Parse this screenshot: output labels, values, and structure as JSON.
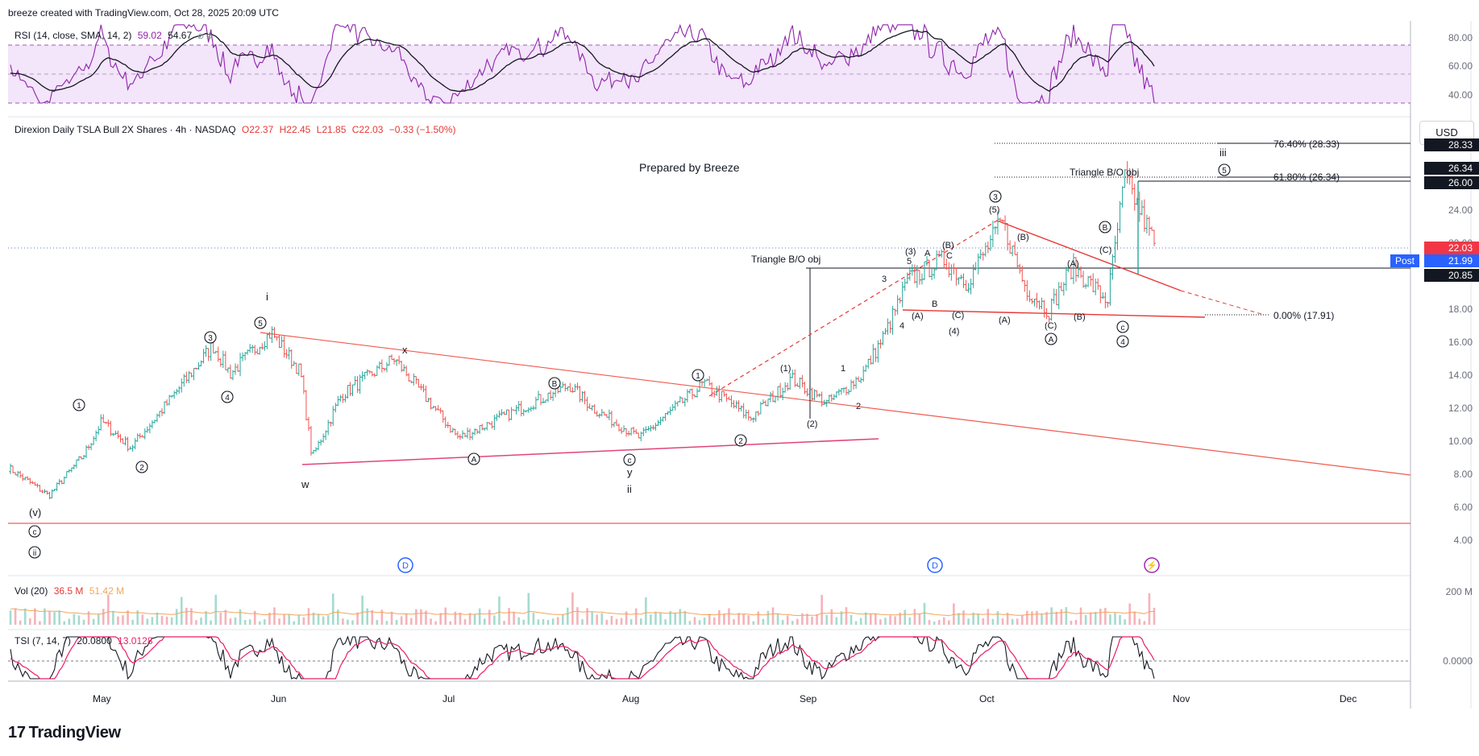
{
  "header": {
    "credit": "breeze created with TradingView.com, Oct 28, 2025 20:09 UTC"
  },
  "rsi": {
    "label": "RSI (14, close, SMA, 14, 2)",
    "value": "59.02",
    "ma": "54.67",
    "icons": "⌀ ⌀",
    "ticks": [
      "80.00",
      "60.00",
      "40.00"
    ]
  },
  "main": {
    "symbol": "Direxion Daily TSLA Bull 2X Shares · 4h · NASDAQ",
    "open": "O22.37",
    "high": "H22.45",
    "low": "L21.85",
    "close": "C22.03",
    "change": "−0.33 (−1.50%)",
    "currency": "USD",
    "watermark": "Prepared by Breeze",
    "ticks": [
      "24.00",
      "22.00",
      "20.00",
      "18.00",
      "16.00",
      "14.00",
      "12.00",
      "10.00",
      "8.00",
      "6.00",
      "4.00"
    ],
    "tags": {
      "t1": "28.33",
      "t2": "26.34",
      "t3": "26.00",
      "last": "22.03",
      "post_label": "Post",
      "post": "21.99",
      "level": "20.85"
    },
    "fib": {
      "f764": "76.40% (28.33)",
      "f618": "61.80% (26.34)",
      "f0": "0.00% (17.91)"
    },
    "triangle_left": "Triangle B/O obj",
    "triangle_right": "Triangle B/O obj",
    "dividend_badge": "D",
    "earnings_badge": "⚡"
  },
  "volume": {
    "label": "Vol (20)",
    "v1": "36.5 M",
    "v2": "51.42 M",
    "tick": "200 M"
  },
  "tsi": {
    "label": "TSI (7, 14, 7)",
    "v1": "20.0800",
    "v2": "13.0128",
    "tick": "0.0000"
  },
  "xaxis": [
    "May",
    "Jun",
    "Jul",
    "Aug",
    "Sep",
    "Oct",
    "Nov",
    "Dec"
  ],
  "footer": {
    "brand": "TradingView",
    "logo": "17"
  },
  "wave_labels": {
    "w1": "i",
    "w2": "ii",
    "w3": "iii",
    "w": "w",
    "x": "x",
    "y": "y",
    "v": "(v)",
    "c": "c",
    "n1": "1",
    "n2": "2",
    "n3": "3",
    "n4": "4",
    "n5": "5",
    "p1": "(1)",
    "p2": "(2)",
    "p3": "(3)",
    "p4": "(4)",
    "p5": "(5)",
    "pA": "(A)",
    "pB": "(B)",
    "pC": "(C)",
    "A": "A",
    "B": "B",
    "C": "C"
  },
  "chart_data": {
    "type": "candlestick",
    "title": "Direxion Daily TSLA Bull 2X Shares · 4h · NASDAQ",
    "x_range": [
      "2025-04-15",
      "2025-12-20"
    ],
    "ylim": [
      4,
      28.33
    ],
    "last_close": 22.03,
    "levels": [
      {
        "label": "Triangle B/O obj",
        "value": 20.85
      },
      {
        "label": "Triangle B/O obj",
        "value": 26.0
      },
      {
        "label": "76.40% (28.33)",
        "value": 28.33
      },
      {
        "label": "61.80% (26.34)",
        "value": 26.34
      },
      {
        "label": "0.00% (17.91)",
        "value": 17.91
      }
    ],
    "price_path": [
      {
        "date": "2025-04-15",
        "price": 8.4
      },
      {
        "date": "2025-04-22",
        "price": 6.7
      },
      {
        "date": "2025-04-28",
        "price": 9.2
      },
      {
        "date": "2025-05-01",
        "price": 11.2
      },
      {
        "date": "2025-05-06",
        "price": 9.6
      },
      {
        "date": "2025-05-12",
        "price": 12.2
      },
      {
        "date": "2025-05-20",
        "price": 15.8
      },
      {
        "date": "2025-05-23",
        "price": 14.1
      },
      {
        "date": "2025-05-30",
        "price": 16.6
      },
      {
        "date": "2025-06-04",
        "price": 14.2
      },
      {
        "date": "2025-06-06",
        "price": 9.0
      },
      {
        "date": "2025-06-11",
        "price": 12.8
      },
      {
        "date": "2025-06-20",
        "price": 15.0
      },
      {
        "date": "2025-06-26",
        "price": 12.4
      },
      {
        "date": "2025-07-01",
        "price": 10.2
      },
      {
        "date": "2025-07-07",
        "price": 11.2
      },
      {
        "date": "2025-07-20",
        "price": 13.4
      },
      {
        "date": "2025-07-24",
        "price": 12.0
      },
      {
        "date": "2025-08-01",
        "price": 10.2
      },
      {
        "date": "2025-08-12",
        "price": 13.5
      },
      {
        "date": "2025-08-20",
        "price": 11.4
      },
      {
        "date": "2025-08-27",
        "price": 13.8
      },
      {
        "date": "2025-09-02",
        "price": 12.3
      },
      {
        "date": "2025-09-08",
        "price": 14.0
      },
      {
        "date": "2025-09-12",
        "price": 16.5
      },
      {
        "date": "2025-09-16",
        "price": 19.8
      },
      {
        "date": "2025-09-22",
        "price": 21.0
      },
      {
        "date": "2025-09-26",
        "price": 19.6
      },
      {
        "date": "2025-10-02",
        "price": 23.3
      },
      {
        "date": "2025-10-06",
        "price": 19.3
      },
      {
        "date": "2025-10-10",
        "price": 17.9
      },
      {
        "date": "2025-10-14",
        "price": 20.6
      },
      {
        "date": "2025-10-20",
        "price": 18.5
      },
      {
        "date": "2025-10-23",
        "price": 26.0
      },
      {
        "date": "2025-10-28",
        "price": 22.03
      }
    ],
    "rsi": {
      "value": 59.02,
      "ma": 54.67,
      "ylim": [
        30,
        85
      ]
    },
    "volume": {
      "value": "36.5 M",
      "ma": "51.42 M"
    },
    "tsi": {
      "value": 20.08,
      "signal": 13.0128
    }
  }
}
